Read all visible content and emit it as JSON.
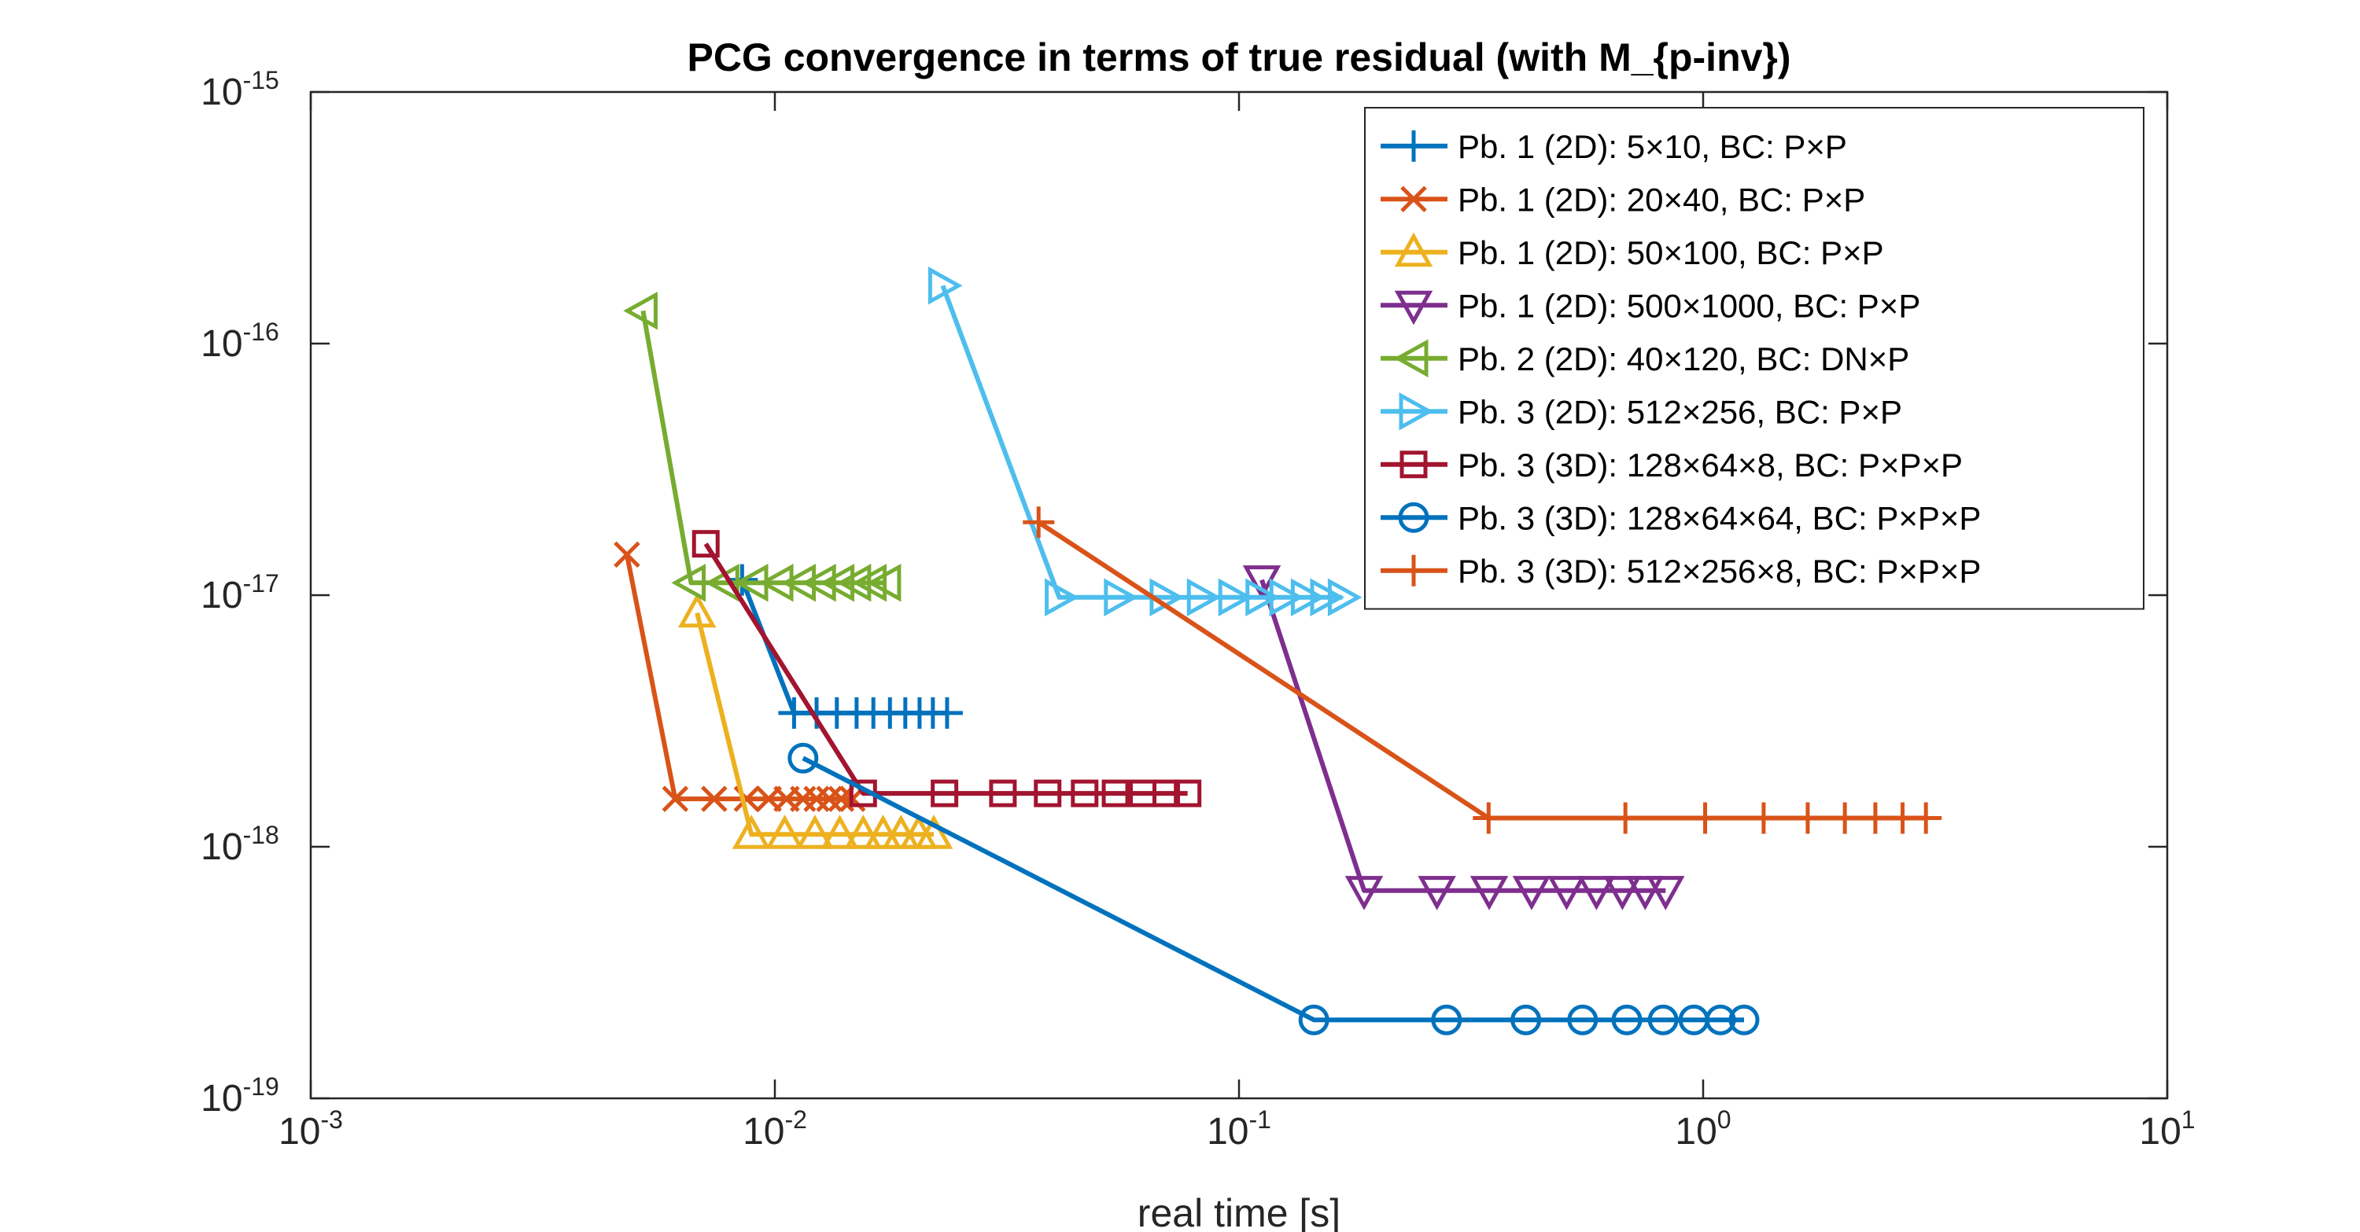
{
  "chart_data": {
    "type": "line",
    "title": "PCG convergence in terms of true residual (with M_{p-inv})",
    "xlabel": "real time [s]",
    "ylabel": "",
    "xscale": "log",
    "yscale": "log",
    "xlim": [
      0.001,
      10
    ],
    "ylim": [
      1e-19,
      1e-15
    ],
    "xticks": [
      {
        "value": 0.001,
        "base": "10",
        "exp": "-3"
      },
      {
        "value": 0.01,
        "base": "10",
        "exp": "-2"
      },
      {
        "value": 0.1,
        "base": "10",
        "exp": "-1"
      },
      {
        "value": 1,
        "base": "10",
        "exp": "0"
      },
      {
        "value": 10,
        "base": "10",
        "exp": "1"
      }
    ],
    "yticks": [
      {
        "value": 1e-15,
        "base": "10",
        "exp": "-15"
      },
      {
        "value": 1e-16,
        "base": "10",
        "exp": "-16"
      },
      {
        "value": 1e-17,
        "base": "10",
        "exp": "-17"
      },
      {
        "value": 1e-18,
        "base": "10",
        "exp": "-18"
      },
      {
        "value": 1e-19,
        "base": "10",
        "exp": "-19"
      }
    ],
    "legend_position": "top-right",
    "series": [
      {
        "name": "Pb. 1 (2D): 5×10, BC: P×P",
        "color": "#0072BD",
        "marker": "plus",
        "x": [
          0.0085,
          0.011,
          0.0123,
          0.0136,
          0.015,
          0.0163,
          0.0177,
          0.0191,
          0.0205,
          0.0219,
          0.0235
        ],
        "y": [
          1.15e-17,
          3.4e-18,
          3.4e-18,
          3.4e-18,
          3.4e-18,
          3.4e-18,
          3.4e-18,
          3.4e-18,
          3.4e-18,
          3.4e-18,
          3.4e-18
        ]
      },
      {
        "name": "Pb. 1 (2D): 20×40, BC: P×P",
        "color": "#D95319",
        "marker": "x",
        "x": [
          0.0048,
          0.0061,
          0.0074,
          0.0087,
          0.0097,
          0.0106,
          0.0115,
          0.0123,
          0.0131,
          0.0139,
          0.0147
        ],
        "y": [
          1.45e-17,
          1.55e-18,
          1.55e-18,
          1.55e-18,
          1.55e-18,
          1.55e-18,
          1.55e-18,
          1.55e-18,
          1.55e-18,
          1.55e-18,
          1.55e-18
        ]
      },
      {
        "name": "Pb. 1 (2D): 50×100, BC: P×P",
        "color": "#EDB120",
        "marker": "triangle-up",
        "x": [
          0.0068,
          0.0089,
          0.0105,
          0.0122,
          0.0138,
          0.0155,
          0.0171,
          0.0187,
          0.0204,
          0.022
        ],
        "y": [
          8.5e-18,
          1.12e-18,
          1.12e-18,
          1.12e-18,
          1.12e-18,
          1.12e-18,
          1.12e-18,
          1.12e-18,
          1.12e-18,
          1.12e-18
        ]
      },
      {
        "name": "Pb. 1 (2D): 500×1000, BC: P×P",
        "color": "#7E2F8E",
        "marker": "triangle-down",
        "x": [
          0.112,
          0.186,
          0.267,
          0.346,
          0.427,
          0.508,
          0.589,
          0.67,
          0.75,
          0.83
        ],
        "y": [
          1.15e-17,
          6.7e-19,
          6.7e-19,
          6.7e-19,
          6.7e-19,
          6.7e-19,
          6.7e-19,
          6.7e-19,
          6.7e-19,
          6.7e-19
        ]
      },
      {
        "name": "Pb. 2 (2D): 40×120, BC: DN×P",
        "color": "#77AC30",
        "marker": "triangle-left",
        "x": [
          0.0052,
          0.0066,
          0.0078,
          0.009,
          0.0102,
          0.0114,
          0.0126,
          0.0138,
          0.015,
          0.0162,
          0.0174
        ],
        "y": [
          1.35e-16,
          1.12e-17,
          1.12e-17,
          1.12e-17,
          1.12e-17,
          1.12e-17,
          1.12e-17,
          1.12e-17,
          1.12e-17,
          1.12e-17,
          1.12e-17
        ]
      },
      {
        "name": "Pb. 3 (2D): 512×256, BC: P×P",
        "color": "#4DBEEE",
        "marker": "triangle-right",
        "x": [
          0.023,
          0.041,
          0.055,
          0.069,
          0.083,
          0.097,
          0.111,
          0.125,
          0.139,
          0.153,
          0.167
        ],
        "y": [
          1.7e-16,
          9.8e-18,
          9.8e-18,
          9.8e-18,
          9.8e-18,
          9.8e-18,
          9.8e-18,
          9.8e-18,
          9.8e-18,
          9.8e-18,
          9.8e-18
        ]
      },
      {
        "name": "Pb. 3 (3D): 128×64×8, BC: P×P×P",
        "color": "#A2142F",
        "marker": "square",
        "x": [
          0.0071,
          0.0155,
          0.0232,
          0.031,
          0.0387,
          0.0465,
          0.0542,
          0.062,
          0.0697,
          0.0775
        ],
        "y": [
          1.6e-17,
          1.63e-18,
          1.63e-18,
          1.63e-18,
          1.63e-18,
          1.63e-18,
          1.63e-18,
          1.63e-18,
          1.63e-18,
          1.63e-18
        ]
      },
      {
        "name": "Pb. 3 (3D): 128×64×64, BC: P×P×P",
        "color": "#0072BD",
        "marker": "circle",
        "x": [
          0.0115,
          0.145,
          0.28,
          0.415,
          0.55,
          0.685,
          0.82,
          0.955,
          1.09,
          1.225
        ],
        "y": [
          2.25e-18,
          2.05e-19,
          2.05e-19,
          2.05e-19,
          2.05e-19,
          2.05e-19,
          2.05e-19,
          2.05e-19,
          2.05e-19,
          2.05e-19
        ]
      },
      {
        "name": "Pb. 3 (3D): 512×256×8, BC: P×P×P",
        "color": "#D95319",
        "marker": "plus",
        "x": [
          0.037,
          0.345,
          0.68,
          1.01,
          1.35,
          1.68,
          2.02,
          2.35,
          2.69,
          3.02
        ],
        "y": [
          1.95e-17,
          1.3e-18,
          1.3e-18,
          1.3e-18,
          1.3e-18,
          1.3e-18,
          1.3e-18,
          1.3e-18,
          1.3e-18,
          1.3e-18
        ]
      }
    ]
  }
}
